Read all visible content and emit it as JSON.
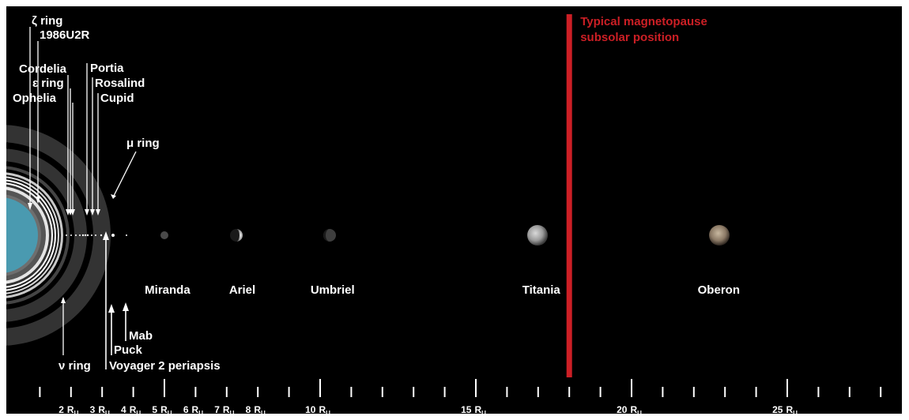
{
  "colors": {
    "background": "#000000",
    "frame": "#ffffff",
    "uranus": "#4a9ab0",
    "magnetopause": "#cc1f25",
    "text": "#ffffff"
  },
  "ring_labels": {
    "zeta": "ζ ring",
    "u2r": "1986U2R",
    "epsilon": "ε ring",
    "mu": "μ ring",
    "nu": "ν ring"
  },
  "inner_moon_labels": {
    "cordelia": "Cordelia",
    "ophelia": "Ophelia",
    "portia": "Portia",
    "rosalind": "Rosalind",
    "cupid": "Cupid",
    "mab": "Mab",
    "puck": "Puck"
  },
  "voyager_label": "Voyager 2 periapsis",
  "magnetopause": {
    "line1": "Typical magnetopause",
    "line2": "subsolar position",
    "distance_ru": 18
  },
  "major_moons": [
    {
      "name": "Miranda",
      "distance_ru": 5.1
    },
    {
      "name": "Ariel",
      "distance_ru": 7.5
    },
    {
      "name": "Umbriel",
      "distance_ru": 10.4
    },
    {
      "name": "Titania",
      "distance_ru": 17.1
    },
    {
      "name": "Oberon",
      "distance_ru": 22.8
    }
  ],
  "axis": {
    "unit_main": "R",
    "unit_sub": "U",
    "labels": [
      2,
      3,
      4,
      5,
      6,
      7,
      8,
      10,
      15,
      20,
      25
    ],
    "tick_min": 1,
    "tick_max": 28
  }
}
